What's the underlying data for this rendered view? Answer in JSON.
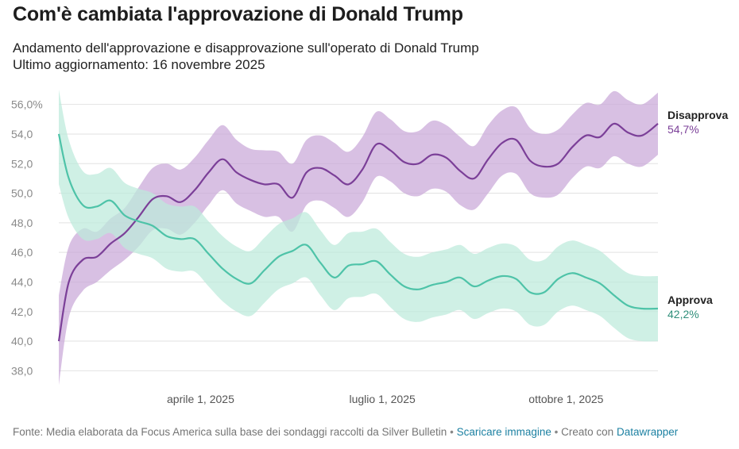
{
  "header": {
    "title": "Com'è cambiata l'approvazione di Donald Trump",
    "subtitle": "Andamento dell'approvazione e disapprovazione sull'operato di Donald Trump",
    "updated": "Ultimo aggiornamento: 16 novembre 2025"
  },
  "footer": {
    "source": "Fonte: Media elaborata da Focus America sulla base dei sondaggi raccolti da Silver Bulletin",
    "separator": "•",
    "download_label": "Scaricare immagine",
    "created_with": "Creato con",
    "datawrapper_label": "Datawrapper"
  },
  "chart_data": {
    "type": "line",
    "ylim": [
      37.0,
      57.0
    ],
    "xlim": [
      "2025-01-20",
      "2025-11-16"
    ],
    "yticks": [
      38,
      40,
      42,
      44,
      46,
      48,
      50,
      52,
      54,
      56
    ],
    "ytick_labels": [
      "38,0",
      "40,0",
      "42,0",
      "44,0",
      "46,0",
      "48,0",
      "50,0",
      "52,0",
      "54,0",
      "56,0%"
    ],
    "xticks": [
      {
        "date": "2025-04-01",
        "label": "aprile 1, 2025"
      },
      {
        "date": "2025-07-01",
        "label": "luglio 1, 2025"
      },
      {
        "date": "2025-10-01",
        "label": "ottobre 1, 2025"
      }
    ],
    "grid": true,
    "series": [
      {
        "name": "Disapprova",
        "end_label": "54,7%",
        "color": "#7b3f98",
        "band_color": "#c9a8d8",
        "x": [
          "2025-01-20",
          "2025-01-25",
          "2025-02-01",
          "2025-02-08",
          "2025-02-15",
          "2025-02-22",
          "2025-03-01",
          "2025-03-08",
          "2025-03-15",
          "2025-03-22",
          "2025-03-29",
          "2025-04-05",
          "2025-04-12",
          "2025-04-19",
          "2025-04-26",
          "2025-05-03",
          "2025-05-10",
          "2025-05-17",
          "2025-05-24",
          "2025-05-31",
          "2025-06-07",
          "2025-06-14",
          "2025-06-21",
          "2025-06-28",
          "2025-07-05",
          "2025-07-12",
          "2025-07-19",
          "2025-07-26",
          "2025-08-02",
          "2025-08-09",
          "2025-08-16",
          "2025-08-23",
          "2025-08-30",
          "2025-09-06",
          "2025-09-13",
          "2025-09-20",
          "2025-09-27",
          "2025-10-04",
          "2025-10-11",
          "2025-10-18",
          "2025-10-25",
          "2025-11-01",
          "2025-11-08",
          "2025-11-16"
        ],
        "values": [
          40.0,
          44.0,
          45.5,
          45.7,
          46.6,
          47.3,
          48.4,
          49.6,
          49.8,
          49.4,
          50.2,
          51.4,
          52.3,
          51.4,
          50.9,
          50.6,
          50.6,
          49.7,
          51.4,
          51.7,
          51.2,
          50.6,
          51.6,
          53.3,
          52.9,
          52.1,
          52.0,
          52.6,
          52.4,
          51.5,
          51.0,
          52.3,
          53.4,
          53.6,
          52.2,
          51.8,
          52.0,
          53.1,
          53.9,
          53.8,
          54.7,
          54.1,
          53.9,
          54.7
        ],
        "lower": [
          37.0,
          41.6,
          43.4,
          44.0,
          44.8,
          45.5,
          46.4,
          47.5,
          47.6,
          47.2,
          48.0,
          49.2,
          50.2,
          49.3,
          48.8,
          48.4,
          48.4,
          47.4,
          49.2,
          49.5,
          49.0,
          48.4,
          49.4,
          51.1,
          50.8,
          50.0,
          49.8,
          50.3,
          50.1,
          49.2,
          48.9,
          50.0,
          51.2,
          51.3,
          50.0,
          49.7,
          49.9,
          51.0,
          51.8,
          51.7,
          52.5,
          52.0,
          51.8,
          52.6
        ],
        "upper": [
          43.1,
          46.4,
          47.6,
          47.4,
          48.3,
          49.0,
          50.4,
          51.7,
          52.0,
          51.6,
          52.4,
          53.6,
          54.6,
          53.6,
          53.0,
          52.9,
          52.8,
          52.0,
          53.6,
          53.9,
          53.4,
          52.8,
          53.8,
          55.5,
          55.0,
          54.2,
          54.2,
          54.9,
          54.6,
          53.8,
          53.2,
          54.6,
          55.6,
          55.8,
          54.4,
          54.0,
          54.3,
          55.3,
          56.1,
          56.0,
          56.9,
          56.3,
          56.0,
          56.8
        ]
      },
      {
        "name": "Approva",
        "end_label": "42,2%",
        "color": "#4ec3a8",
        "label_color": "#2f8f7a",
        "band_color": "#bdeadb",
        "x": [
          "2025-01-20",
          "2025-01-25",
          "2025-02-01",
          "2025-02-08",
          "2025-02-15",
          "2025-02-22",
          "2025-03-01",
          "2025-03-08",
          "2025-03-15",
          "2025-03-22",
          "2025-03-29",
          "2025-04-05",
          "2025-04-12",
          "2025-04-19",
          "2025-04-26",
          "2025-05-03",
          "2025-05-10",
          "2025-05-17",
          "2025-05-24",
          "2025-05-31",
          "2025-06-07",
          "2025-06-14",
          "2025-06-21",
          "2025-06-28",
          "2025-07-05",
          "2025-07-12",
          "2025-07-19",
          "2025-07-26",
          "2025-08-02",
          "2025-08-09",
          "2025-08-16",
          "2025-08-23",
          "2025-08-30",
          "2025-09-06",
          "2025-09-13",
          "2025-09-20",
          "2025-09-27",
          "2025-10-04",
          "2025-10-11",
          "2025-10-18",
          "2025-10-25",
          "2025-11-01",
          "2025-11-08",
          "2025-11-16"
        ],
        "values": [
          54.0,
          51.0,
          49.2,
          49.1,
          49.5,
          48.5,
          48.1,
          47.8,
          47.1,
          46.9,
          46.9,
          45.9,
          44.9,
          44.2,
          43.9,
          44.8,
          45.7,
          46.1,
          46.5,
          45.3,
          44.3,
          45.1,
          45.2,
          45.4,
          44.5,
          43.7,
          43.5,
          43.8,
          44.0,
          44.3,
          43.7,
          44.1,
          44.4,
          44.2,
          43.3,
          43.3,
          44.2,
          44.6,
          44.3,
          43.9,
          43.1,
          42.4,
          42.2,
          42.2
        ],
        "lower": [
          50.6,
          48.3,
          46.9,
          46.9,
          47.3,
          46.3,
          45.9,
          45.6,
          44.9,
          44.7,
          44.7,
          43.7,
          42.7,
          42.0,
          41.7,
          42.6,
          43.5,
          43.9,
          44.3,
          43.1,
          42.1,
          42.9,
          43.0,
          43.2,
          42.3,
          41.5,
          41.3,
          41.6,
          41.8,
          42.1,
          41.5,
          41.9,
          42.2,
          42.0,
          41.1,
          41.1,
          42.0,
          42.4,
          42.1,
          41.7,
          40.9,
          40.2,
          40.0,
          40.0
        ],
        "upper": [
          57.0,
          53.6,
          51.5,
          51.3,
          51.7,
          50.7,
          50.3,
          50.0,
          49.3,
          49.1,
          49.1,
          48.1,
          47.1,
          46.4,
          46.1,
          47.0,
          47.9,
          48.3,
          48.7,
          47.5,
          46.5,
          47.3,
          47.4,
          47.6,
          46.7,
          45.9,
          45.7,
          46.0,
          46.2,
          46.5,
          45.9,
          46.3,
          46.6,
          46.4,
          45.5,
          45.5,
          46.4,
          46.8,
          46.5,
          46.1,
          45.3,
          44.6,
          44.4,
          44.4
        ]
      }
    ]
  }
}
